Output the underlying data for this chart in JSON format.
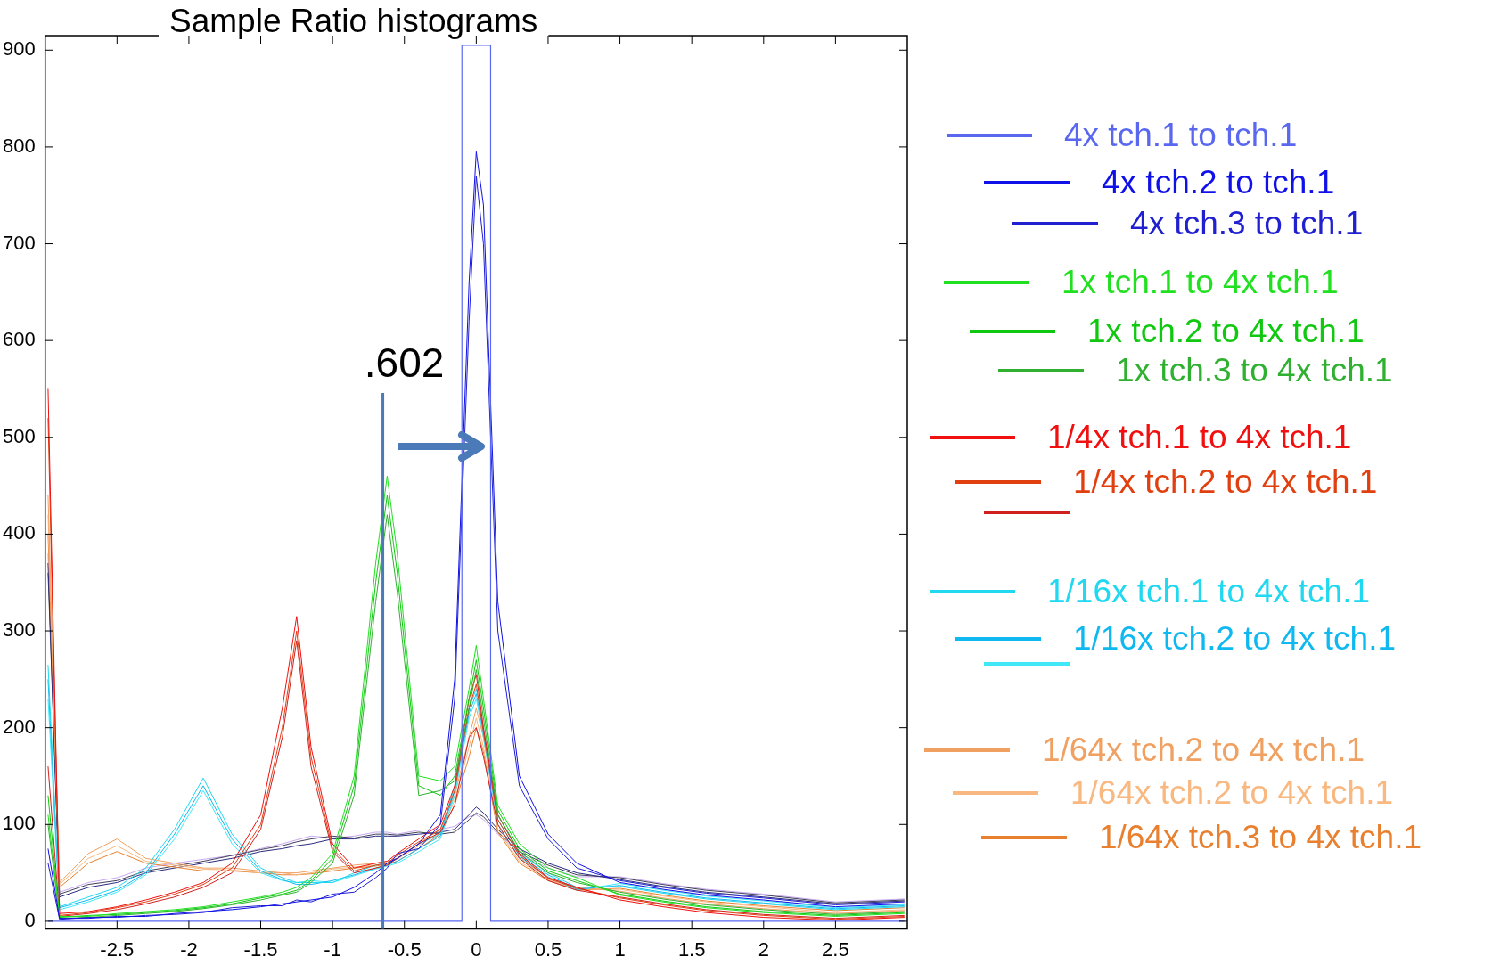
{
  "chart_data": {
    "type": "line",
    "title": "Sample Ratio histograms",
    "x": [
      -2.98,
      -2.9,
      -2.7,
      -2.5,
      -2.3,
      -2.1,
      -1.9,
      -1.7,
      -1.5,
      -1.35,
      -1.25,
      -1.15,
      -1.0,
      -0.85,
      -0.7,
      -0.62,
      -0.55,
      -0.4,
      -0.25,
      -0.15,
      -0.05,
      0,
      0.05,
      0.15,
      0.3,
      0.5,
      0.7,
      1.0,
      1.3,
      1.6,
      2.0,
      2.5,
      2.98
    ],
    "xlim": [
      -3,
      3
    ],
    "xticks": [
      -2.5,
      -2,
      -1.5,
      -1,
      -0.5,
      0,
      0.5,
      1,
      1.5,
      2,
      2.5
    ],
    "ylim": [
      -8,
      915
    ],
    "yticks": [
      0,
      100,
      200,
      300,
      400,
      500,
      600,
      700,
      800,
      900
    ],
    "grid": false,
    "legend": "right",
    "marker": "none",
    "ref_lines": [
      {
        "axis": "x",
        "value": -0.65,
        "color": "#4a7ab8"
      }
    ],
    "annotations": [
      ".602"
    ],
    "series": [
      {
        "name": "4x tch.1 to tch.1",
        "color": "#5a68f0",
        "x": [
          -2.98,
          -0.1,
          -0.1,
          0.1,
          0.1,
          2.98
        ],
        "values": [
          0,
          0,
          905,
          905,
          0,
          0
        ]
      },
      {
        "name": "4x tch.2 to tch.1",
        "color": "#1010e8",
        "values": [
          75,
          3,
          3,
          5,
          5,
          8,
          10,
          12,
          15,
          18,
          20,
          22,
          25,
          35,
          50,
          60,
          65,
          80,
          110,
          250,
          660,
          795,
          740,
          330,
          150,
          90,
          60,
          40,
          33,
          27,
          22,
          15,
          18
        ]
      },
      {
        "name": "4x tch.3 to tch.1",
        "color": "#2020d0",
        "values": [
          60,
          2,
          4,
          4,
          6,
          7,
          9,
          14,
          16,
          16,
          22,
          20,
          28,
          30,
          45,
          55,
          70,
          75,
          100,
          230,
          620,
          770,
          700,
          300,
          140,
          85,
          55,
          42,
          35,
          29,
          24,
          17,
          20
        ]
      },
      {
        "name": "1x tch.1 to 4x tch.1",
        "color": "#20e020",
        "values": [
          110,
          5,
          5,
          8,
          10,
          12,
          15,
          20,
          25,
          30,
          35,
          45,
          70,
          150,
          370,
          460,
          380,
          150,
          145,
          160,
          240,
          285,
          230,
          120,
          80,
          55,
          45,
          27,
          20,
          14,
          9,
          5,
          8
        ]
      },
      {
        "name": "1x tch.2 to 4x tch.1",
        "color": "#10c810",
        "values": [
          130,
          4,
          6,
          7,
          9,
          11,
          14,
          18,
          24,
          28,
          32,
          42,
          65,
          140,
          350,
          440,
          360,
          140,
          130,
          150,
          230,
          270,
          220,
          115,
          75,
          52,
          42,
          28,
          21,
          15,
          10,
          6,
          9
        ]
      },
      {
        "name": "1x tch.3  to 4x tch.1",
        "color": "#30b030",
        "values": [
          100,
          3,
          4,
          6,
          8,
          10,
          13,
          17,
          22,
          27,
          30,
          40,
          60,
          130,
          330,
          420,
          340,
          130,
          135,
          145,
          220,
          260,
          210,
          110,
          72,
          50,
          40,
          30,
          23,
          17,
          12,
          7,
          10
        ]
      },
      {
        "name": "1/4x tch.1 to 4x tch.1",
        "color": "#f01010",
        "values": [
          550,
          8,
          10,
          15,
          22,
          30,
          40,
          60,
          110,
          220,
          315,
          180,
          80,
          55,
          60,
          62,
          70,
          85,
          100,
          140,
          230,
          255,
          200,
          110,
          70,
          45,
          35,
          22,
          15,
          9,
          4,
          1,
          4
        ]
      },
      {
        "name": "1/4x tch.2 to 4x tch.1",
        "color": "#e04010",
        "values": [
          520,
          6,
          9,
          14,
          20,
          28,
          38,
          55,
          100,
          200,
          300,
          170,
          75,
          52,
          58,
          60,
          68,
          82,
          95,
          135,
          220,
          245,
          195,
          105,
          68,
          44,
          34,
          24,
          17,
          11,
          6,
          2,
          5
        ]
      },
      {
        "color": "#d02020",
        "values": [
          160,
          5,
          8,
          12,
          18,
          25,
          35,
          50,
          95,
          190,
          290,
          160,
          72,
          50,
          55,
          58,
          65,
          80,
          92,
          120,
          190,
          200,
          170,
          100,
          65,
          42,
          32,
          25,
          18,
          12,
          7,
          3,
          6
        ]
      },
      {
        "name": "1/16x tch.1 to 4x tch.1",
        "color": "#20d8f0",
        "values": [
          265,
          15,
          25,
          35,
          55,
          95,
          148,
          90,
          55,
          45,
          40,
          40,
          40,
          50,
          58,
          60,
          65,
          80,
          90,
          140,
          220,
          240,
          200,
          110,
          70,
          50,
          35,
          36,
          29,
          23,
          18,
          12,
          15
        ]
      },
      {
        "name": "1/16x tch.2 to 4x tch.1",
        "color": "#10b8f0",
        "values": [
          250,
          14,
          22,
          32,
          50,
          90,
          140,
          85,
          52,
          43,
          38,
          38,
          42,
          48,
          55,
          58,
          62,
          75,
          88,
          135,
          215,
          235,
          195,
          105,
          68,
          48,
          33,
          37,
          30,
          24,
          19,
          13,
          16
        ]
      },
      {
        "color": "#40e8f8",
        "values": [
          230,
          12,
          20,
          30,
          48,
          85,
          135,
          80,
          50,
          42,
          40,
          42,
          40,
          47,
          54,
          57,
          60,
          72,
          85,
          130,
          210,
          230,
          190,
          100,
          66,
          46,
          32,
          39,
          32,
          26,
          21,
          14,
          17
        ]
      },
      {
        "name": "1/64x tch.2 to 4x tch.1",
        "color": "#f0a060",
        "values": [
          440,
          40,
          70,
          85,
          65,
          60,
          55,
          55,
          52,
          50,
          50,
          52,
          55,
          58,
          60,
          62,
          65,
          80,
          95,
          130,
          190,
          220,
          190,
          100,
          65,
          45,
          35,
          31,
          24,
          18,
          13,
          8,
          11
        ]
      },
      {
        "name": "1/64x tch.2 to 4x tch.1",
        "color": "#f8b880",
        "values": [
          420,
          38,
          65,
          78,
          62,
          58,
          54,
          53,
          50,
          50,
          48,
          50,
          54,
          56,
          58,
          60,
          64,
          78,
          92,
          125,
          180,
          210,
          180,
          95,
          62,
          43,
          33,
          33,
          26,
          20,
          15,
          9,
          12
        ]
      },
      {
        "name": "1/64x tch.3 to 4x tch.1",
        "color": "#e88030",
        "values": [
          400,
          35,
          60,
          72,
          60,
          56,
          52,
          52,
          50,
          48,
          48,
          49,
          52,
          55,
          57,
          59,
          62,
          75,
          90,
          120,
          170,
          200,
          175,
          92,
          60,
          42,
          32,
          34,
          27,
          21,
          16,
          11,
          14
        ]
      },
      {
        "color": "#2a2a80",
        "values": [
          370,
          25,
          35,
          40,
          50,
          55,
          60,
          65,
          72,
          75,
          78,
          80,
          85,
          85,
          88,
          88,
          88,
          90,
          92,
          95,
          110,
          118,
          112,
          95,
          75,
          60,
          50,
          43,
          36,
          30,
          25,
          18,
          21
        ]
      },
      {
        "color": "#404058",
        "values": [
          360,
          28,
          38,
          42,
          52,
          57,
          62,
          68,
          74,
          78,
          82,
          85,
          88,
          86,
          90,
          90,
          89,
          92,
          90,
          92,
          105,
          112,
          108,
          92,
          72,
          58,
          48,
          45,
          38,
          32,
          27,
          19,
          22
        ]
      },
      {
        "color": "#c8a8f0",
        "values": [
          380,
          30,
          40,
          45,
          55,
          60,
          64,
          68,
          75,
          80,
          84,
          88,
          86,
          88,
          92,
          92,
          90,
          94,
          95,
          98,
          108,
          110,
          105,
          90,
          70,
          55,
          46,
          46,
          39,
          33,
          28,
          20,
          23
        ]
      }
    ]
  }
}
